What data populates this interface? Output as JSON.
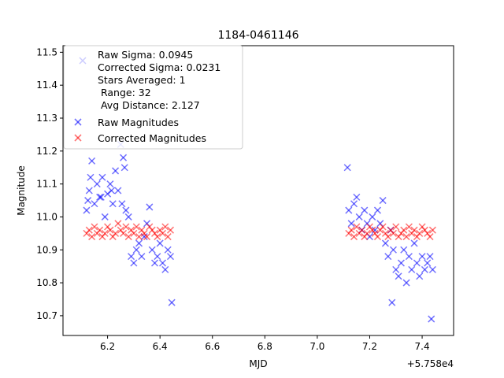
{
  "chart_data": {
    "type": "scatter",
    "title": "1184-0461146",
    "xlabel": "MJD",
    "ylabel": "Magnitude",
    "x_offset_label": "+5.758e4",
    "xlim": [
      6.03,
      7.52
    ],
    "ylim": [
      10.64,
      11.52
    ],
    "x_ticks": [
      "6.2",
      "6.4",
      "6.6",
      "6.8",
      "7.0",
      "7.2",
      "7.4"
    ],
    "y_ticks": [
      "10.7",
      "10.8",
      "10.9",
      "11.0",
      "11.1",
      "11.2",
      "11.3",
      "11.4",
      "11.5"
    ],
    "grid": false,
    "legend_placement": "top-left",
    "legend": {
      "stats_lines": [
        "Raw Sigma: 0.0945",
        "Corrected Sigma: 0.0231",
        "Stars Averaged: 1",
        " Range: 32",
        " Avg Distance: 2.127"
      ],
      "series_labels": [
        "Raw Magnitudes",
        "Corrected Magnitudes"
      ]
    },
    "colors": {
      "raw": "#0000ff",
      "corrected": "#ff0000",
      "stats_marker": "#ccccff"
    },
    "series": [
      {
        "name": "Raw Magnitudes",
        "x": [
          6.12,
          6.125,
          6.13,
          6.14,
          6.15,
          6.16,
          6.17,
          6.18,
          6.19,
          6.2,
          6.21,
          6.22,
          6.23,
          6.24,
          6.25,
          6.26,
          6.265,
          6.27,
          6.28,
          6.29,
          6.3,
          6.31,
          6.32,
          6.33,
          6.34,
          6.35,
          6.36,
          6.37,
          6.38,
          6.39,
          6.4,
          6.41,
          6.42,
          6.43,
          6.44,
          6.445,
          6.135,
          6.175,
          6.215,
          6.255,
          7.12,
          7.13,
          7.14,
          7.15,
          7.16,
          7.17,
          7.18,
          7.19,
          7.2,
          7.21,
          7.22,
          7.23,
          7.24,
          7.25,
          7.26,
          7.27,
          7.28,
          7.29,
          7.3,
          7.31,
          7.32,
          7.33,
          7.34,
          7.35,
          7.36,
          7.37,
          7.38,
          7.39,
          7.4,
          7.41,
          7.42,
          7.43,
          7.44,
          7.115,
          7.285,
          7.435
        ],
        "values": [
          11.02,
          11.05,
          11.08,
          11.17,
          11.04,
          11.1,
          11.06,
          11.12,
          11.0,
          11.07,
          11.1,
          11.04,
          11.14,
          11.08,
          11.22,
          11.18,
          11.15,
          11.02,
          11.0,
          10.88,
          10.86,
          10.9,
          10.92,
          10.88,
          10.94,
          10.98,
          11.03,
          10.9,
          10.86,
          10.88,
          10.92,
          10.86,
          10.84,
          10.9,
          10.88,
          10.74,
          11.12,
          11.06,
          11.08,
          11.04,
          11.02,
          10.98,
          11.04,
          11.06,
          11.0,
          10.96,
          11.02,
          10.98,
          10.94,
          11.0,
          10.96,
          11.02,
          10.98,
          11.05,
          10.92,
          10.88,
          10.96,
          10.9,
          10.84,
          10.82,
          10.86,
          10.9,
          10.8,
          10.88,
          10.84,
          10.92,
          10.86,
          10.82,
          10.88,
          10.84,
          10.86,
          10.88,
          10.84,
          11.15,
          10.74,
          10.69
        ]
      },
      {
        "name": "Corrected Magnitudes",
        "x": [
          6.12,
          6.13,
          6.14,
          6.15,
          6.16,
          6.17,
          6.18,
          6.19,
          6.2,
          6.21,
          6.22,
          6.23,
          6.24,
          6.25,
          6.26,
          6.27,
          6.28,
          6.29,
          6.3,
          6.31,
          6.32,
          6.33,
          6.34,
          6.35,
          6.36,
          6.37,
          6.38,
          6.39,
          6.4,
          6.41,
          6.42,
          6.43,
          6.44,
          7.12,
          7.13,
          7.14,
          7.15,
          7.16,
          7.17,
          7.18,
          7.19,
          7.2,
          7.21,
          7.22,
          7.23,
          7.24,
          7.25,
          7.26,
          7.27,
          7.28,
          7.29,
          7.3,
          7.31,
          7.32,
          7.33,
          7.34,
          7.35,
          7.36,
          7.37,
          7.38,
          7.39,
          7.4,
          7.41,
          7.42,
          7.43,
          7.44
        ],
        "values": [
          10.95,
          10.96,
          10.94,
          10.97,
          10.95,
          10.96,
          10.94,
          10.95,
          10.97,
          10.96,
          10.94,
          10.95,
          10.98,
          10.96,
          10.95,
          10.97,
          10.94,
          10.96,
          10.95,
          10.97,
          10.94,
          10.96,
          10.95,
          10.94,
          10.97,
          10.96,
          10.95,
          10.94,
          10.96,
          10.95,
          10.97,
          10.94,
          10.96,
          10.95,
          10.96,
          10.94,
          10.97,
          10.95,
          10.96,
          10.94,
          10.95,
          10.97,
          10.96,
          10.95,
          10.94,
          10.96,
          10.97,
          10.95,
          10.94,
          10.96,
          10.95,
          10.97,
          10.94,
          10.95,
          10.96,
          10.94,
          10.97,
          10.95,
          10.96,
          10.94,
          10.95,
          10.97,
          10.96,
          10.95,
          10.94,
          10.96
        ]
      }
    ]
  }
}
